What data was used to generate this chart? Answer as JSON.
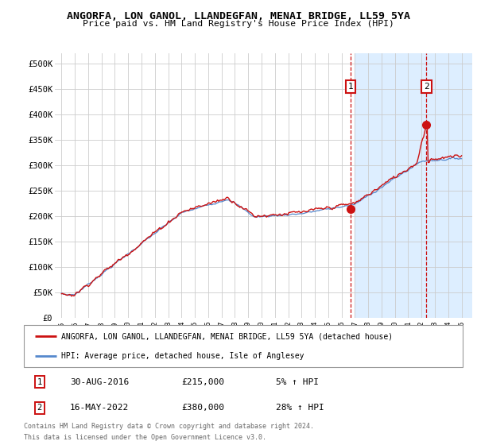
{
  "title": "ANGORFA, LON GANOL, LLANDEGFAN, MENAI BRIDGE, LL59 5YA",
  "subtitle": "Price paid vs. HM Land Registry's House Price Index (HPI)",
  "yticks": [
    0,
    50000,
    100000,
    150000,
    200000,
    250000,
    300000,
    350000,
    400000,
    450000,
    500000
  ],
  "ytick_labels": [
    "£0",
    "£50K",
    "£100K",
    "£150K",
    "£200K",
    "£250K",
    "£300K",
    "£350K",
    "£400K",
    "£450K",
    "£500K"
  ],
  "xlim_start": 1994.5,
  "xlim_end": 2025.8,
  "ylim_bottom": 0,
  "ylim_top": 520000,
  "shade_start": 2017.0,
  "shade_end": 2025.8,
  "shade_color": "#ddeeff",
  "point1_x": 2016.66,
  "point1_y": 215000,
  "point2_x": 2022.37,
  "point2_y": 380000,
  "red_line_color": "#cc1111",
  "blue_line_color": "#5588cc",
  "background_color": "#ffffff",
  "grid_color": "#cccccc",
  "legend_line1": "ANGORFA, LON GANOL, LLANDEGFAN, MENAI BRIDGE, LL59 5YA (detached house)",
  "legend_line2": "HPI: Average price, detached house, Isle of Anglesey",
  "table_row1": [
    "1",
    "30-AUG-2016",
    "£215,000",
    "5% ↑ HPI"
  ],
  "table_row2": [
    "2",
    "16-MAY-2022",
    "£380,000",
    "28% ↑ HPI"
  ],
  "footer1": "Contains HM Land Registry data © Crown copyright and database right 2024.",
  "footer2": "This data is licensed under the Open Government Licence v3.0."
}
